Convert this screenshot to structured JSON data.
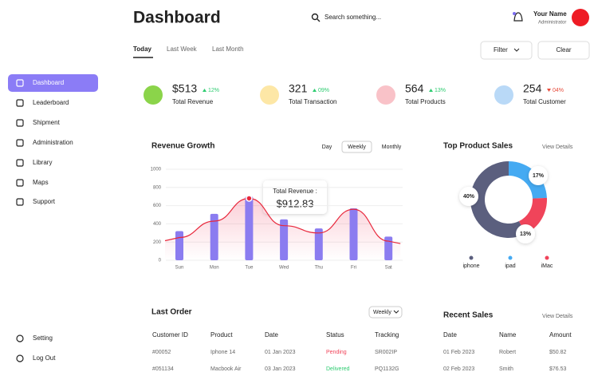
{
  "header": {
    "title": "Dashboard",
    "search_placeholder": "Search something...",
    "user_name": "Your Name",
    "user_role": "Administrator"
  },
  "tabs": [
    "Today",
    "Last Week",
    "Last Month"
  ],
  "filter": "Filter",
  "clear": "Clear",
  "sidebar": {
    "items": [
      "Dashboard",
      "Leaderboard",
      "Shipment",
      "Administration",
      "Library",
      "Maps",
      "Support"
    ],
    "bottom": [
      "Setting",
      "Log Out"
    ]
  },
  "stats": [
    {
      "value": "$513",
      "change": "12%",
      "direction": "up",
      "label": "Total Revenue",
      "color": "#8bd44a"
    },
    {
      "value": "321",
      "change": "09%",
      "direction": "up",
      "label": "Total Transaction",
      "color": "#fde7a6"
    },
    {
      "value": "564",
      "change": "13%",
      "direction": "up",
      "label": "Total Products",
      "color": "#f9c2c8"
    },
    {
      "value": "254",
      "change": "04%",
      "direction": "down",
      "label": "Total Customer",
      "color": "#b9d9f7"
    }
  ],
  "revenue": {
    "title": "Revenue Growth",
    "periods": [
      "Day",
      "Weekly",
      "Monthly"
    ],
    "categories": [
      "Sun",
      "Mon",
      "Tue",
      "Wed",
      "Thu",
      "Fri",
      "Sat"
    ],
    "bars": [
      320,
      510,
      700,
      450,
      350,
      570,
      260
    ],
    "line": [
      250,
      430,
      680,
      380,
      300,
      560,
      210
    ],
    "ylim": [
      0,
      1000
    ],
    "yticks": [
      0,
      200,
      400,
      600,
      800,
      1000
    ],
    "tooltip_label": "Total Revenue :",
    "tooltip_value": "$912.83"
  },
  "top_products": {
    "title": "Top Product Sales",
    "link": "View Details",
    "segments": [
      {
        "name": "iphone",
        "value": 40,
        "label": "40%",
        "color": "#5b5f7e"
      },
      {
        "name": "ipad",
        "value": 17,
        "label": "17%",
        "color": "#45aaf2"
      },
      {
        "name": "iMac",
        "value": 13,
        "label": "13%",
        "color": "#f0445a"
      }
    ]
  },
  "last_order": {
    "title": "Last Order",
    "period": "Weekly",
    "columns": [
      "Customer ID",
      "Product",
      "Date",
      "Status",
      "Tracking"
    ],
    "rows": [
      [
        "#00052",
        "Iphone 14",
        "01 Jan 2023",
        "Pending",
        "SR002IP"
      ],
      [
        "#051134",
        "Macbook Air",
        "03 Jan 2023",
        "Delivered",
        "PQ1132G"
      ]
    ]
  },
  "recent_sales": {
    "title": "Recent Sales",
    "link": "View Details",
    "columns": [
      "Date",
      "Name",
      "Amount"
    ],
    "rows": [
      [
        "01 Feb 2023",
        "Robert",
        "$50.82"
      ],
      [
        "02 Feb 2023",
        "Smith",
        "$76.53"
      ]
    ]
  }
}
